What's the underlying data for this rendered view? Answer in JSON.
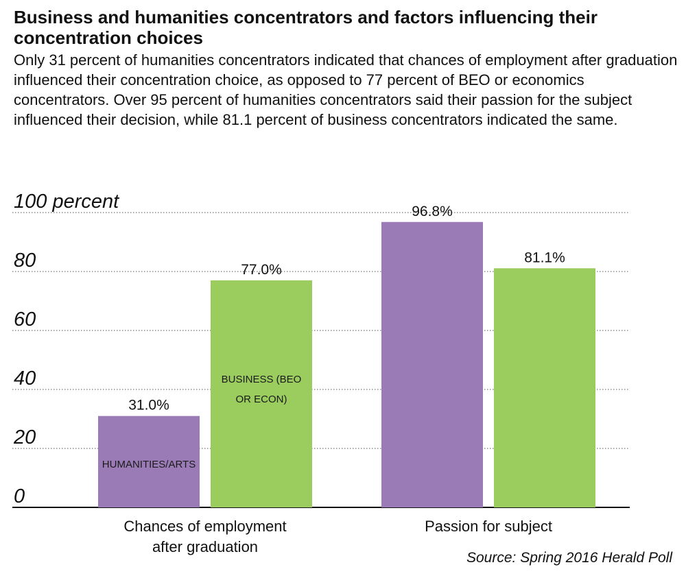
{
  "title": "Business and humanities concentrators and factors influencing their concentration choices",
  "subtitle": "Only 31 percent of humanities concentrators indicated that chances of employment after graduation influenced their concentration choice, as opposed to 77 percent of BEO or economics concentrators. Over 95 percent of humanities concentrators said their passion for the subject influenced their decision, while 81.1 percent of business concentrators indicated the same.",
  "source": "Source: Spring 2016 Herald Poll",
  "chart_data": {
    "type": "bar",
    "title": "Business and humanities concentrators and factors influencing their concentration choices",
    "categories": [
      [
        "Chances of employment",
        "after graduation"
      ],
      [
        "Passion for subject"
      ]
    ],
    "series": [
      {
        "name": "HUMANITIES/ARTS",
        "color": "#9b7bb6",
        "values": [
          31.0,
          96.8
        ],
        "labels": [
          "31.0%",
          "96.8%"
        ]
      },
      {
        "name": "BUSINESS (BEO OR ECON)",
        "color": "#9bcc5e",
        "values": [
          77.0,
          81.1
        ],
        "labels": [
          "77.0%",
          "81.1%"
        ]
      }
    ],
    "in_bar_labels": [
      [
        "HUMANITIES/ARTS"
      ],
      [
        "BUSINESS (BEO",
        "OR ECON)"
      ]
    ],
    "ylim": [
      0,
      100
    ],
    "yticks": [
      0,
      20,
      40,
      60,
      80,
      100
    ],
    "ytick_labels": [
      "0",
      "20",
      "40",
      "60",
      "80",
      "100 percent"
    ],
    "grid": true,
    "xlabel": "",
    "ylabel": ""
  }
}
